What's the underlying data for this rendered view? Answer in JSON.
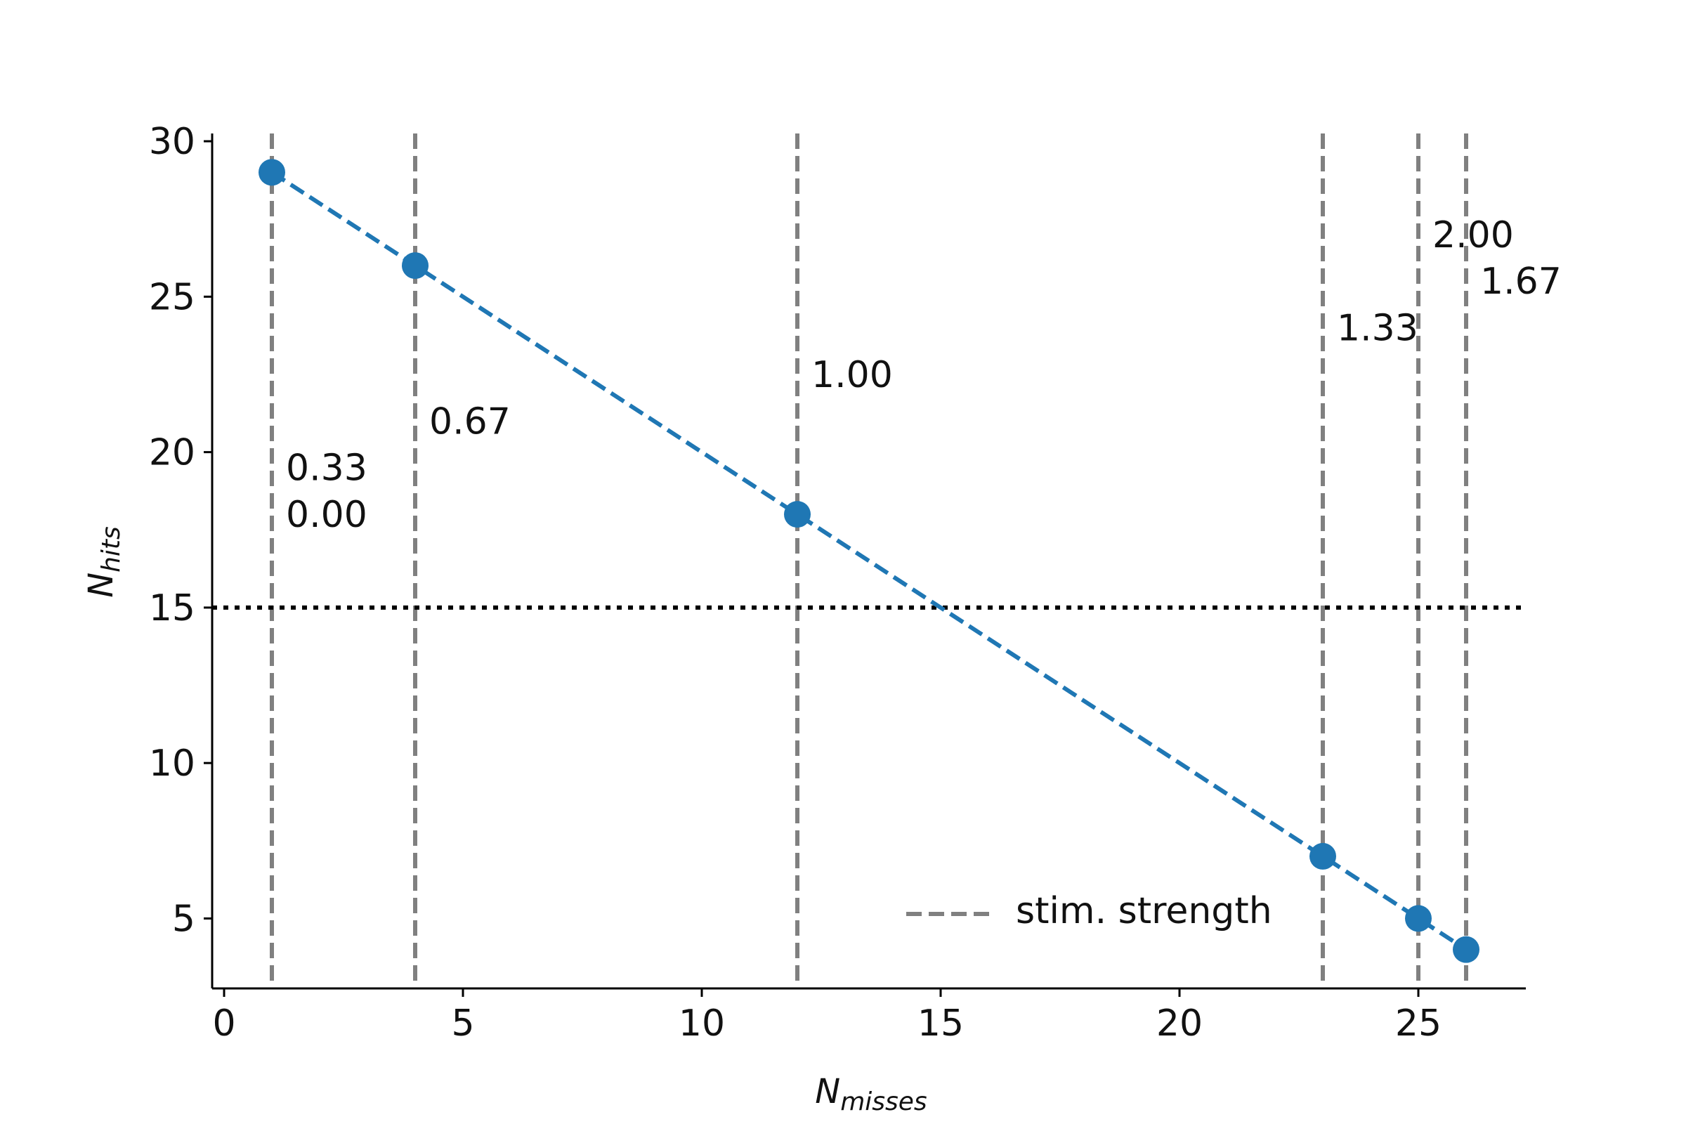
{
  "chart_data": {
    "type": "line",
    "title": "",
    "xlabel": {
      "main": "N",
      "sub": "misses"
    },
    "ylabel": {
      "main": "N",
      "sub": "hits"
    },
    "xlim": [
      -0.25,
      27.25
    ],
    "ylim": [
      2.75,
      30.25
    ],
    "x_ticks": [
      0,
      5,
      10,
      15,
      20,
      25
    ],
    "y_ticks": [
      5,
      10,
      15,
      20,
      25,
      30
    ],
    "grid": false,
    "legend_position": "lower-right",
    "series": [
      {
        "x": [
          1,
          4,
          12,
          23,
          25,
          26
        ],
        "y": [
          29,
          26,
          18,
          7,
          5,
          4
        ],
        "color": "#1f77b4",
        "line_style": "dashed",
        "marker": "circle"
      }
    ],
    "reference_lines": [
      {
        "orientation": "horizontal",
        "value": 15,
        "color": "#000000",
        "style": "dotted"
      }
    ],
    "vertical_lines": {
      "legend_label": "stim. strength",
      "color": "#808080",
      "style": "dashed",
      "x": [
        1,
        4,
        12,
        23,
        25,
        26
      ]
    },
    "annotations": [
      {
        "text": "0.00",
        "x": 1,
        "y": 18.0
      },
      {
        "text": "0.33",
        "x": 1,
        "y": 19.5
      },
      {
        "text": "0.67",
        "x": 4,
        "y": 21.0
      },
      {
        "text": "1.00",
        "x": 12,
        "y": 22.5
      },
      {
        "text": "1.33",
        "x": 23,
        "y": 24.0
      },
      {
        "text": "1.67",
        "x": 26,
        "y": 25.5
      },
      {
        "text": "2.00",
        "x": 25,
        "y": 27.0
      }
    ]
  }
}
